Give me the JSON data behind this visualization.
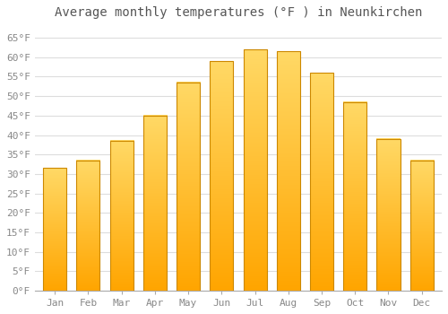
{
  "title": "Average monthly temperatures (°F ) in Neunkirchen",
  "months": [
    "Jan",
    "Feb",
    "Mar",
    "Apr",
    "May",
    "Jun",
    "Jul",
    "Aug",
    "Sep",
    "Oct",
    "Nov",
    "Dec"
  ],
  "values": [
    31.5,
    33.5,
    38.5,
    45.0,
    53.5,
    59.0,
    62.0,
    61.5,
    56.0,
    48.5,
    39.0,
    33.5
  ],
  "bar_color_top": "#FFD966",
  "bar_color_bottom": "#FFA500",
  "bar_edge_color": "#CC8800",
  "ylim": [
    0,
    68
  ],
  "yticks": [
    0,
    5,
    10,
    15,
    20,
    25,
    30,
    35,
    40,
    45,
    50,
    55,
    60,
    65
  ],
  "ytick_labels": [
    "0°F",
    "5°F",
    "10°F",
    "15°F",
    "20°F",
    "25°F",
    "30°F",
    "35°F",
    "40°F",
    "45°F",
    "50°F",
    "55°F",
    "60°F",
    "65°F"
  ],
  "background_color": "#FFFFFF",
  "grid_color": "#DDDDDD",
  "title_fontsize": 10,
  "tick_fontsize": 8,
  "font_family": "monospace",
  "bar_width": 0.7
}
